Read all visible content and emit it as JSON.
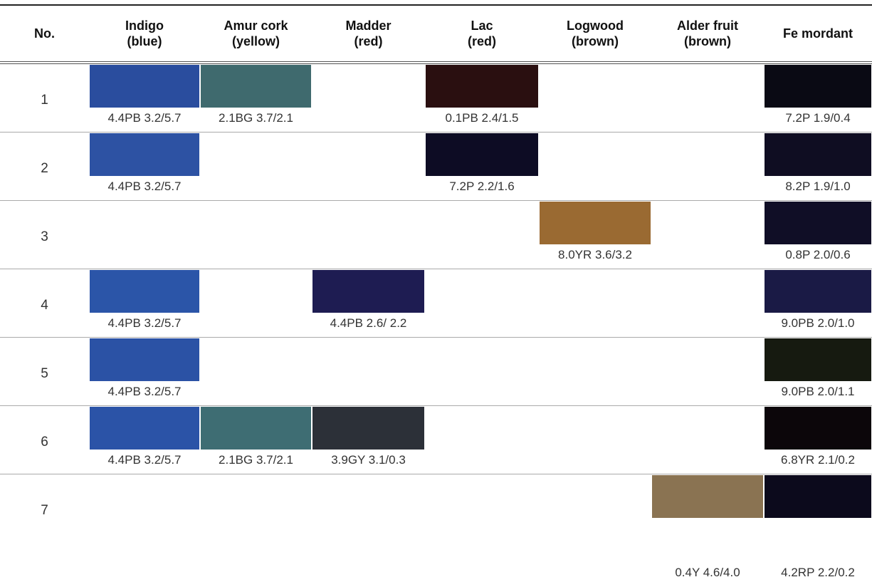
{
  "table": {
    "header": [
      "No.",
      "Indigo\n(blue)",
      "Amur cork\n(yellow)",
      "Madder\n(red)",
      "Lac\n(red)",
      "Logwood\n(brown)",
      "Alder fruit\n(brown)",
      "Fe mordant"
    ],
    "rows": [
      {
        "no": "1",
        "cells": [
          {
            "label": "4.4PB 3.2/5.7",
            "color": "#2a4d9e"
          },
          {
            "label": "2.1BG 3.7/2.1",
            "color": "#3f6a6e"
          },
          null,
          {
            "label": "0.1PB 2.4/1.5",
            "color": "#2a0f10"
          },
          null,
          null,
          {
            "label": "7.2P 1.9/0.4",
            "color": "#0a0a14"
          }
        ]
      },
      {
        "no": "2",
        "cells": [
          {
            "label": "4.4PB 3.2/5.7",
            "color": "#2d52a3"
          },
          null,
          null,
          {
            "label": "7.2P 2.2/1.6",
            "color": "#0d0c24"
          },
          null,
          null,
          {
            "label": "8.2P 1.9/1.0",
            "color": "#0f0d22"
          }
        ]
      },
      {
        "no": "3",
        "cells": [
          null,
          null,
          null,
          null,
          {
            "label": "8.0YR 3.6/3.2",
            "color": "#9a6a32"
          },
          null,
          {
            "label": "0.8P 2.0/0.6",
            "color": "#100e26"
          }
        ]
      },
      {
        "no": "4",
        "cells": [
          {
            "label": "4.4PB 3.2/5.7",
            "color": "#2b55a8"
          },
          null,
          {
            "label": "4.4PB 2.6/ 2.2",
            "color": "#1e1c52"
          },
          null,
          null,
          null,
          {
            "label": "9.0PB 2.0/1.0",
            "color": "#1a1a45"
          }
        ]
      },
      {
        "no": "5",
        "cells": [
          {
            "label": "4.4PB 3.2/5.7",
            "color": "#2b52a5"
          },
          null,
          null,
          null,
          null,
          null,
          {
            "label": "9.0PB 2.0/1.1",
            "color": "#161a10"
          }
        ]
      },
      {
        "no": "6",
        "cells": [
          {
            "label": "4.4PB 3.2/5.7",
            "color": "#2b53a7"
          },
          {
            "label": "2.1BG 3.7/2.1",
            "color": "#3e6d73"
          },
          {
            "label": "3.9GY 3.1/0.3",
            "color": "#2c3038"
          },
          null,
          null,
          null,
          {
            "label": "6.8YR 2.1/0.2",
            "color": "#0c060a"
          }
        ]
      },
      {
        "no": "7",
        "cells": [
          null,
          null,
          null,
          null,
          null,
          {
            "label": "0.4Y 4.6/4.0",
            "color": "#8a7352"
          },
          {
            "label": "4.2RP 2.2/0.2",
            "color": "#0c0a1c"
          }
        ]
      }
    ]
  }
}
